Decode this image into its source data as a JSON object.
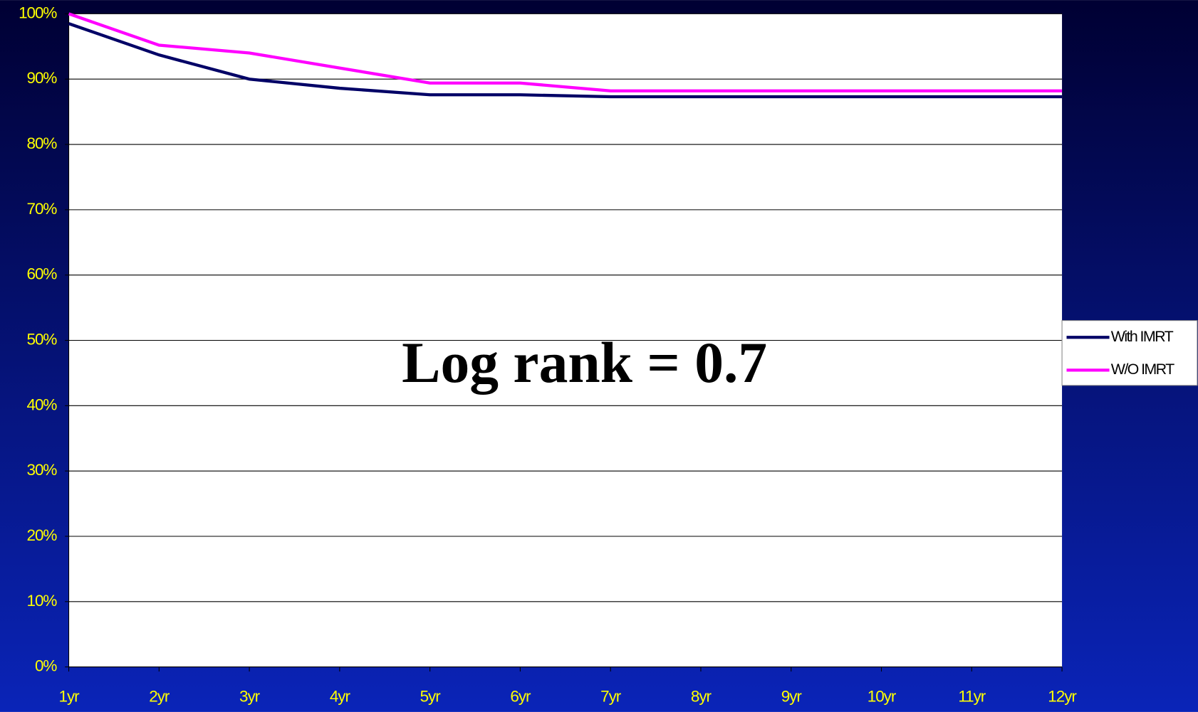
{
  "chart_data": {
    "type": "line",
    "categories": [
      "1yr",
      "2yr",
      "3yr",
      "4yr",
      "5yr",
      "6yr",
      "7yr",
      "8yr",
      "9yr",
      "10yr",
      "11yr",
      "12yr"
    ],
    "series": [
      {
        "name": "With IMRT",
        "color": "#000066",
        "values": [
          98.5,
          93.7,
          90.0,
          88.6,
          87.6,
          87.6,
          87.3,
          87.3,
          87.3,
          87.3,
          87.3,
          87.3
        ]
      },
      {
        "name": "W/O IMRT",
        "color": "#ff00ff",
        "values": [
          100,
          95.2,
          94.0,
          91.7,
          89.4,
          89.4,
          88.2,
          88.2,
          88.2,
          88.2,
          88.2,
          88.2
        ]
      }
    ],
    "ylim": [
      0,
      100
    ],
    "yticks": [
      {
        "value": 0,
        "label": "0%"
      },
      {
        "value": 10,
        "label": "10%"
      },
      {
        "value": 20,
        "label": "20%"
      },
      {
        "value": 30,
        "label": "30%"
      },
      {
        "value": 40,
        "label": "40%"
      },
      {
        "value": 50,
        "label": "50%"
      },
      {
        "value": 60,
        "label": "60%"
      },
      {
        "value": 70,
        "label": "70%"
      },
      {
        "value": 80,
        "label": "80%"
      },
      {
        "value": 90,
        "label": "90%"
      },
      {
        "value": 100,
        "label": "100%"
      }
    ],
    "grid": true,
    "annotation": "Log rank = 0.7",
    "legend": "right"
  }
}
